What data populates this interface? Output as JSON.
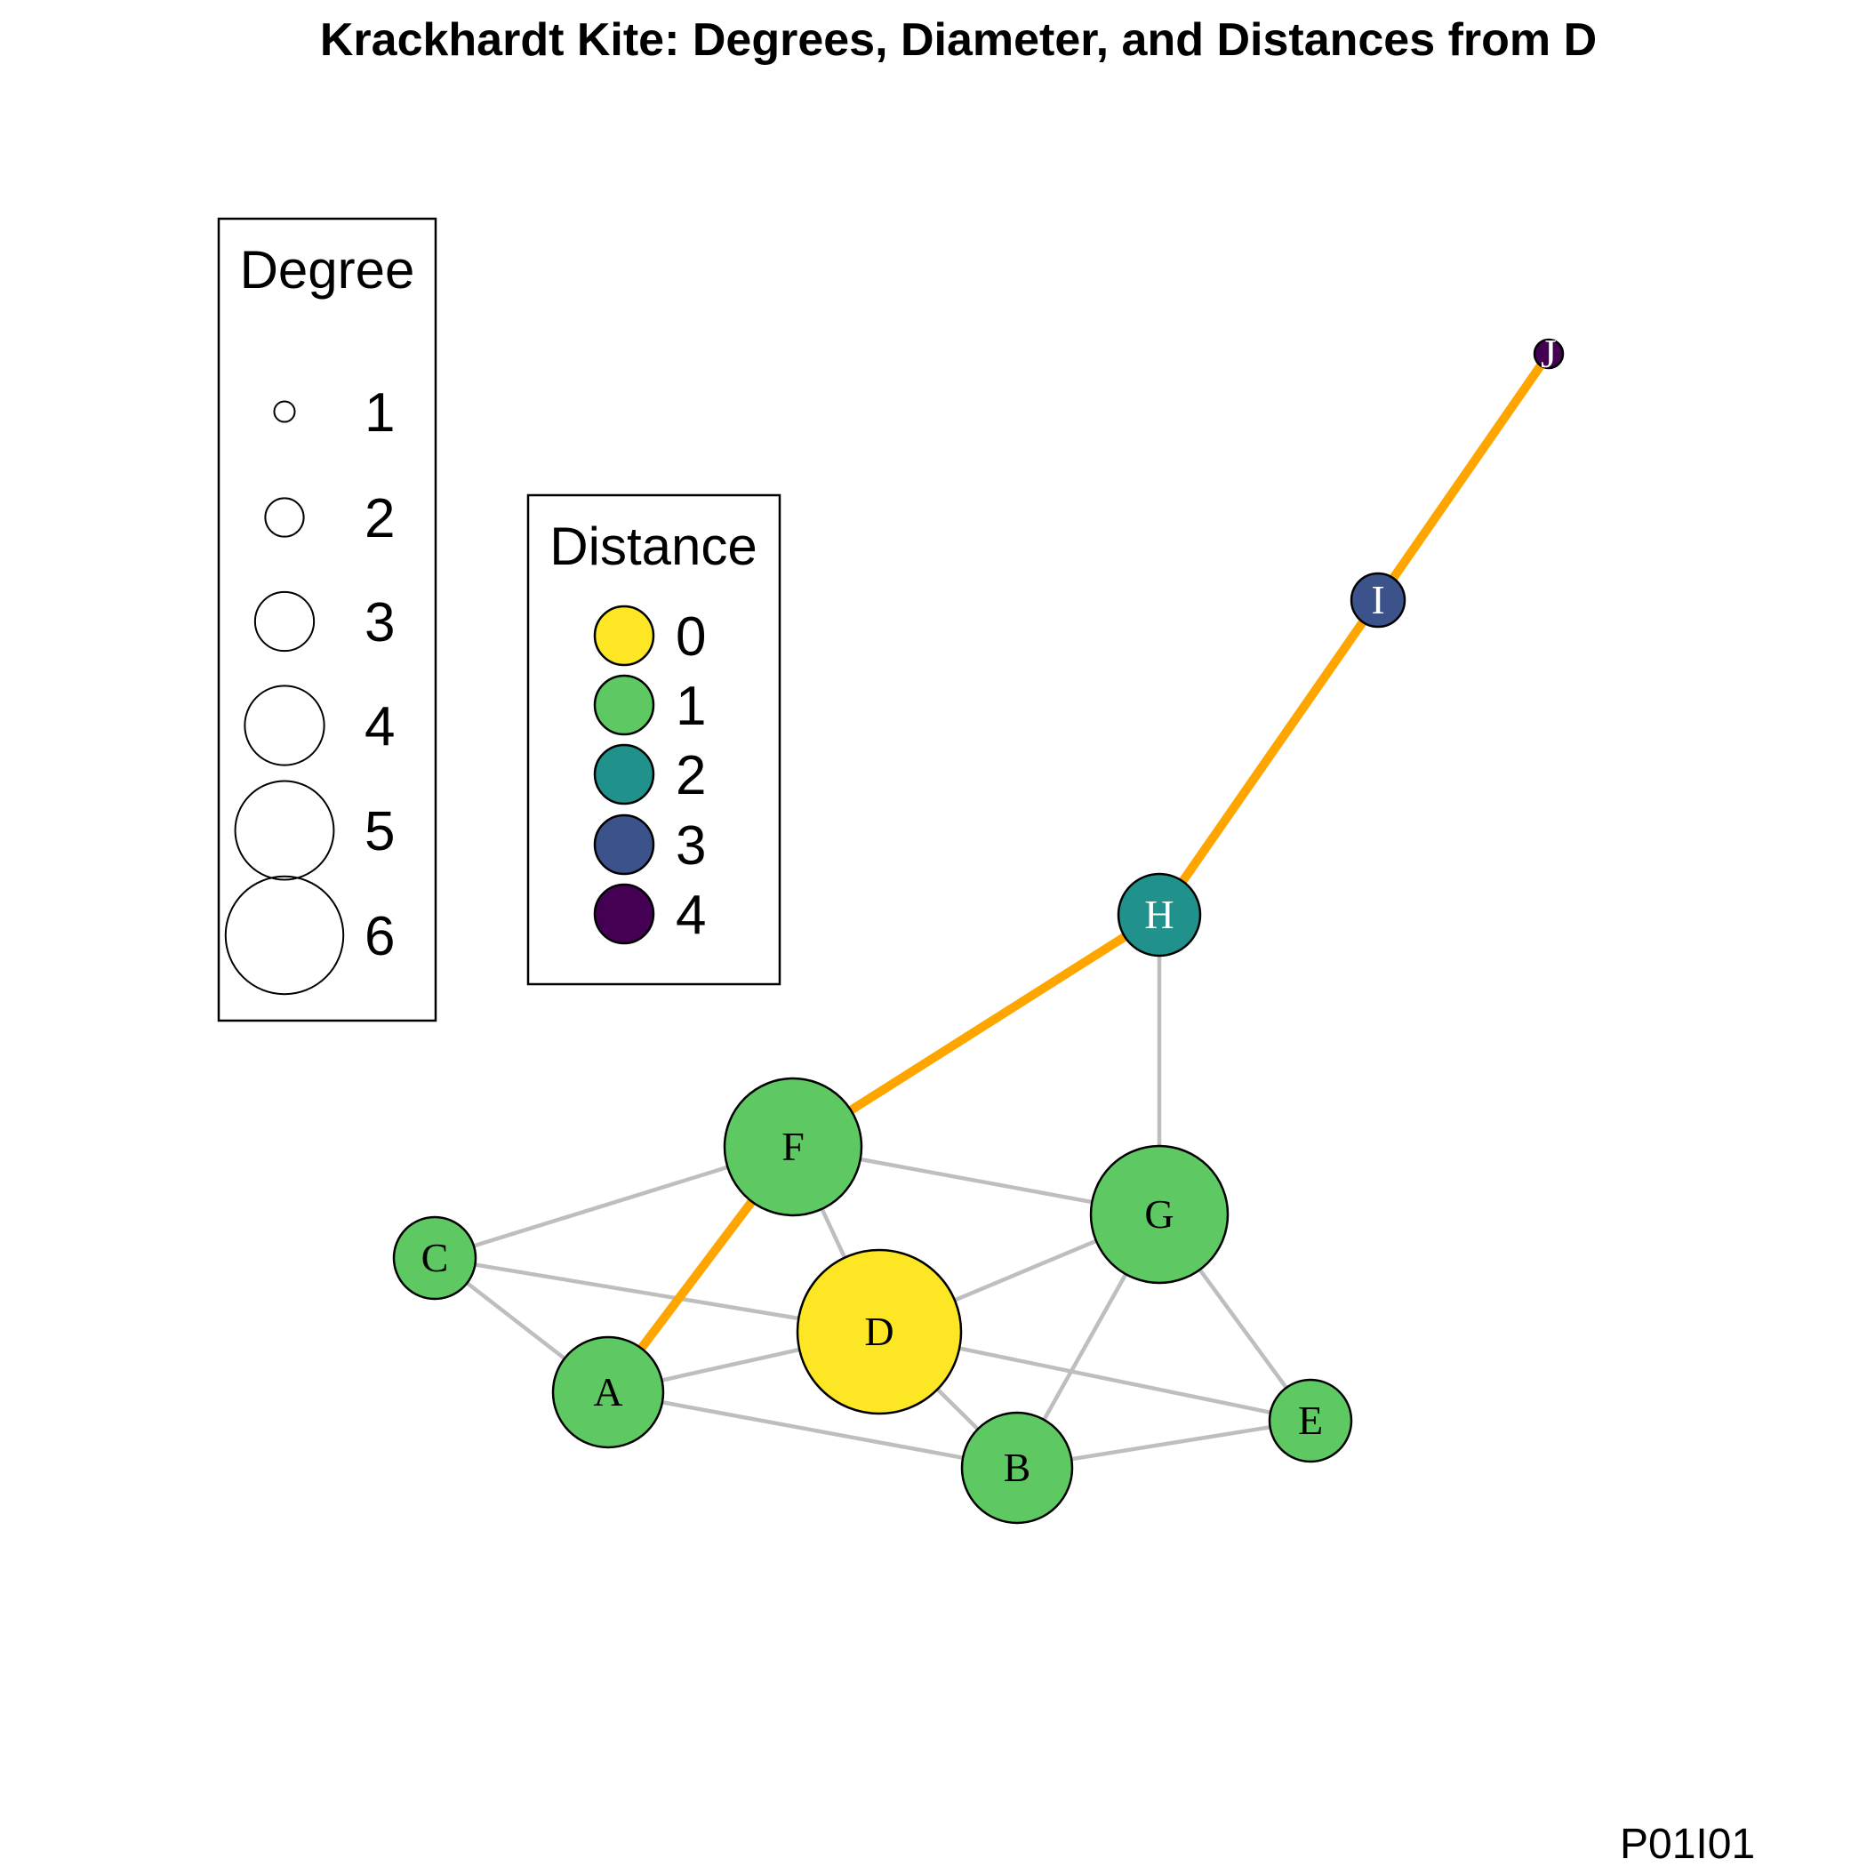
{
  "title": "Krackhardt Kite: Degrees, Diameter, and Distances from D",
  "watermark": "P01I01",
  "colors": {
    "edge": "#bebebe",
    "diameter_edge": "#ffa500",
    "distance_0": "#fde725",
    "distance_1": "#5ec962",
    "distance_2": "#21918c",
    "distance_3": "#3b528b",
    "distance_4": "#440154"
  },
  "legend_degree": {
    "title": "Degree",
    "items": [
      {
        "label": "1",
        "degree": 1
      },
      {
        "label": "2",
        "degree": 2
      },
      {
        "label": "3",
        "degree": 3
      },
      {
        "label": "4",
        "degree": 4
      },
      {
        "label": "5",
        "degree": 5
      },
      {
        "label": "6",
        "degree": 6
      }
    ]
  },
  "legend_distance": {
    "title": "Distance",
    "items": [
      {
        "label": "0",
        "color": "#fde725"
      },
      {
        "label": "1",
        "color": "#5ec962"
      },
      {
        "label": "2",
        "color": "#21918c"
      },
      {
        "label": "3",
        "color": "#3b528b"
      },
      {
        "label": "4",
        "color": "#440154"
      }
    ]
  },
  "nodes": [
    {
      "id": "A",
      "label": "A",
      "degree": 4,
      "distance": 1
    },
    {
      "id": "B",
      "label": "B",
      "degree": 4,
      "distance": 1
    },
    {
      "id": "C",
      "label": "C",
      "degree": 3,
      "distance": 1
    },
    {
      "id": "D",
      "label": "D",
      "degree": 6,
      "distance": 0
    },
    {
      "id": "E",
      "label": "E",
      "degree": 3,
      "distance": 1
    },
    {
      "id": "F",
      "label": "F",
      "degree": 5,
      "distance": 1
    },
    {
      "id": "G",
      "label": "G",
      "degree": 5,
      "distance": 1
    },
    {
      "id": "H",
      "label": "H",
      "degree": 3,
      "distance": 2
    },
    {
      "id": "I",
      "label": "I",
      "degree": 2,
      "distance": 3
    },
    {
      "id": "J",
      "label": "J",
      "degree": 1,
      "distance": 4
    }
  ],
  "edges": [
    {
      "from": "C",
      "to": "F",
      "diameter": false
    },
    {
      "from": "C",
      "to": "D",
      "diameter": false
    },
    {
      "from": "C",
      "to": "A",
      "diameter": false
    },
    {
      "from": "F",
      "to": "G",
      "diameter": false
    },
    {
      "from": "F",
      "to": "D",
      "diameter": false
    },
    {
      "from": "D",
      "to": "G",
      "diameter": false
    },
    {
      "from": "A",
      "to": "D",
      "diameter": false
    },
    {
      "from": "A",
      "to": "B",
      "diameter": false
    },
    {
      "from": "D",
      "to": "B",
      "diameter": false
    },
    {
      "from": "D",
      "to": "E",
      "diameter": false
    },
    {
      "from": "G",
      "to": "B",
      "diameter": false
    },
    {
      "from": "G",
      "to": "E",
      "diameter": false
    },
    {
      "from": "B",
      "to": "E",
      "diameter": false
    },
    {
      "from": "H",
      "to": "G",
      "diameter": false
    },
    {
      "from": "A",
      "to": "F",
      "diameter": true
    },
    {
      "from": "F",
      "to": "H",
      "diameter": true
    },
    {
      "from": "H",
      "to": "I",
      "diameter": true
    },
    {
      "from": "I",
      "to": "J",
      "diameter": true
    }
  ]
}
